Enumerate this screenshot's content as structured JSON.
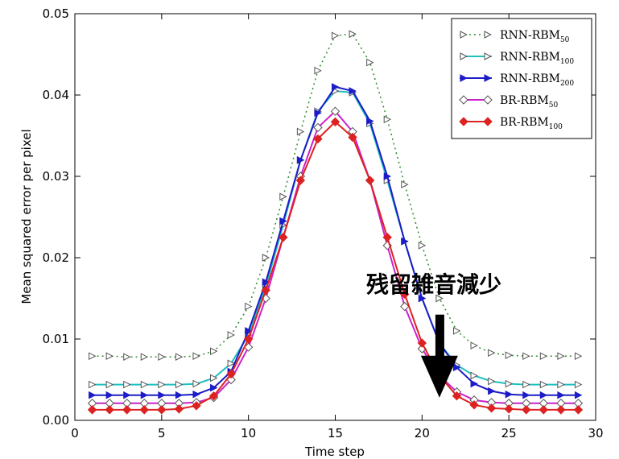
{
  "chart_data": {
    "type": "line",
    "title": "",
    "xlabel": "Time step",
    "ylabel": "Mean squared error per pixel",
    "xlim": [
      0,
      30
    ],
    "ylim": [
      0,
      0.05
    ],
    "xticks": [
      0,
      5,
      10,
      15,
      20,
      25,
      30
    ],
    "xtick_labels": [
      "0",
      "5",
      "10",
      "15",
      "20",
      "25",
      "30"
    ],
    "yticks": [
      0,
      0.01,
      0.02,
      0.03,
      0.04,
      0.05
    ],
    "ytick_labels": [
      "0.00",
      "0.01",
      "0.02",
      "0.03",
      "0.04",
      "0.05"
    ],
    "grid": false,
    "legend_position": "top-right",
    "x": [
      1,
      2,
      3,
      4,
      5,
      6,
      7,
      8,
      9,
      10,
      11,
      12,
      13,
      14,
      15,
      16,
      17,
      18,
      19,
      20,
      21,
      22,
      23,
      24,
      25,
      26,
      27,
      28,
      29
    ],
    "series": [
      {
        "name": "RNN-RBM",
        "name_sub": "50",
        "color": "#2e8b2e",
        "marker": "triangle-right-open",
        "dash": "dotted",
        "values": [
          0.0079,
          0.0079,
          0.0078,
          0.0078,
          0.0078,
          0.0078,
          0.0079,
          0.0085,
          0.0105,
          0.014,
          0.02,
          0.0275,
          0.0355,
          0.043,
          0.0473,
          0.0475,
          0.044,
          0.037,
          0.029,
          0.0215,
          0.015,
          0.011,
          0.0092,
          0.0083,
          0.008,
          0.0079,
          0.0079,
          0.0079,
          0.0079
        ]
      },
      {
        "name": "RNN-RBM",
        "name_sub": "100",
        "color": "#1fbfbf",
        "marker": "triangle-right-open",
        "dash": "solid",
        "values": [
          0.0044,
          0.0044,
          0.0044,
          0.0044,
          0.0044,
          0.0044,
          0.0045,
          0.0052,
          0.007,
          0.0105,
          0.0165,
          0.024,
          0.032,
          0.038,
          0.0405,
          0.0403,
          0.0365,
          0.0295,
          0.022,
          0.015,
          0.0095,
          0.0068,
          0.0055,
          0.0048,
          0.0045,
          0.0044,
          0.0044,
          0.0044,
          0.0044
        ]
      },
      {
        "name": "RNN-RBM",
        "name_sub": "200",
        "color": "#1c1cc8",
        "marker": "triangle-right-filled",
        "dash": "solid",
        "values": [
          0.0031,
          0.0031,
          0.0031,
          0.0031,
          0.0031,
          0.0031,
          0.0032,
          0.004,
          0.006,
          0.011,
          0.017,
          0.0245,
          0.032,
          0.0378,
          0.041,
          0.0405,
          0.0368,
          0.03,
          0.022,
          0.015,
          0.0095,
          0.0065,
          0.0045,
          0.0036,
          0.0032,
          0.0031,
          0.0031,
          0.0031,
          0.0031
        ]
      },
      {
        "name": "BR-RBM",
        "name_sub": "50",
        "color": "#cc22cc",
        "marker": "diamond-open",
        "dash": "solid",
        "values": [
          0.0021,
          0.0021,
          0.0021,
          0.0021,
          0.0021,
          0.0021,
          0.0022,
          0.0028,
          0.005,
          0.009,
          0.015,
          0.0225,
          0.03,
          0.036,
          0.038,
          0.0355,
          0.0295,
          0.0215,
          0.014,
          0.0088,
          0.0055,
          0.0035,
          0.0025,
          0.0022,
          0.0021,
          0.0021,
          0.0021,
          0.0021,
          0.0021
        ]
      },
      {
        "name": "BR-RBM",
        "name_sub": "100",
        "color": "#dd2222",
        "marker": "diamond-filled",
        "dash": "solid",
        "values": [
          0.0013,
          0.0013,
          0.0013,
          0.0013,
          0.0013,
          0.0014,
          0.0018,
          0.003,
          0.0057,
          0.01,
          0.016,
          0.0225,
          0.0295,
          0.0346,
          0.0367,
          0.0348,
          0.0295,
          0.0225,
          0.0155,
          0.0095,
          0.0055,
          0.003,
          0.0019,
          0.0015,
          0.0014,
          0.0013,
          0.0013,
          0.0013,
          0.0013
        ]
      }
    ],
    "annotation": {
      "text": "残留雑音減少",
      "arrow_at_x": 21,
      "arrow_from_y": 0.013,
      "arrow_to_y": 0.0028
    }
  }
}
